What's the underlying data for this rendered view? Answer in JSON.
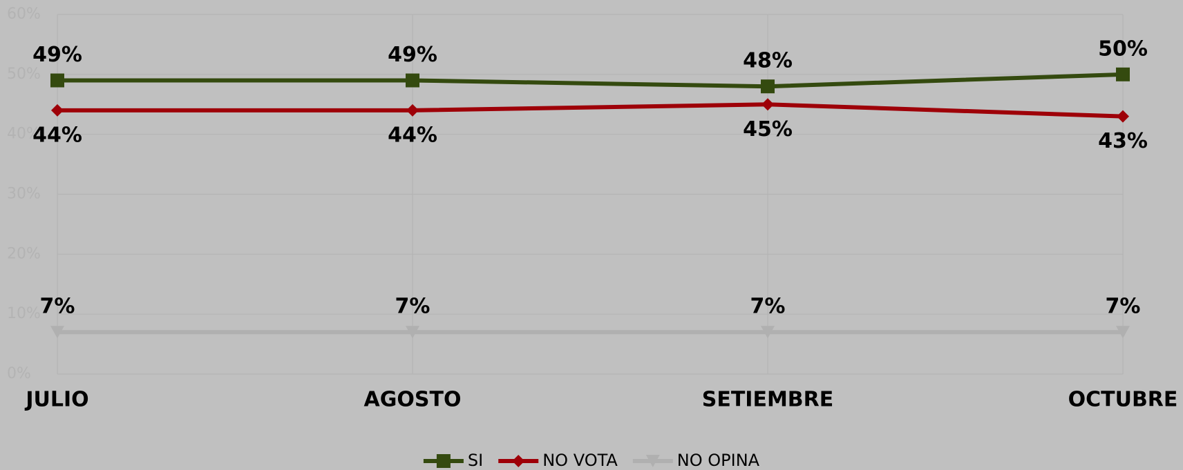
{
  "chart_data": {
    "type": "line",
    "categories": [
      "JULIO",
      "AGOSTO",
      "SETIEMBRE",
      "OCTUBRE"
    ],
    "series": [
      {
        "name": "SI",
        "color": "#344a0f",
        "marker": "square",
        "values": [
          49,
          49,
          48,
          50
        ],
        "value_labels": [
          "49%",
          "49%",
          "48%",
          "50%"
        ]
      },
      {
        "name": "NO VOTA",
        "color": "#9e0008",
        "marker": "diamond",
        "values": [
          44,
          44,
          45,
          43
        ],
        "value_labels": [
          "44%",
          "44%",
          "45%",
          "43%"
        ]
      },
      {
        "name": "NO OPINA",
        "color": "#b0b0b0",
        "marker": "triangle",
        "values": [
          7,
          7,
          7,
          7
        ],
        "value_labels": [
          "7%",
          "7%",
          "7%",
          "7%"
        ]
      }
    ],
    "ylim": [
      0,
      60
    ],
    "yticks": [
      {
        "value": 0,
        "label": "0%"
      },
      {
        "value": 10,
        "label": "10%"
      },
      {
        "value": 20,
        "label": "20%"
      },
      {
        "value": 30,
        "label": "30%"
      },
      {
        "value": 40,
        "label": "40%"
      },
      {
        "value": 50,
        "label": "50%"
      },
      {
        "value": 60,
        "label": "60%"
      }
    ],
    "grid": true,
    "legend": "bottom"
  }
}
